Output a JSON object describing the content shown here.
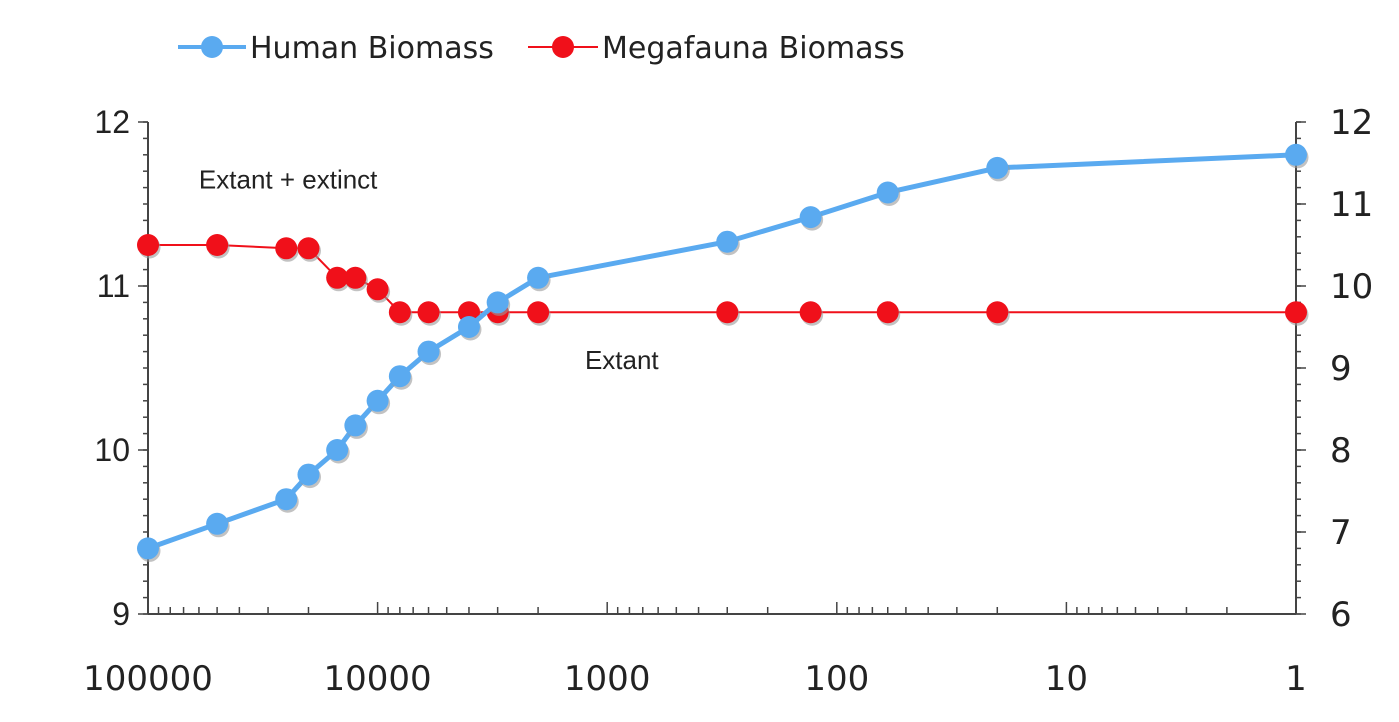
{
  "chart_data": {
    "type": "line",
    "x_scale": "log",
    "x_reversed": true,
    "xlim": [
      100000,
      1
    ],
    "ylim_left": [
      9,
      12
    ],
    "ylim_right": [
      6,
      12
    ],
    "x_tick_labels": [
      "100000",
      "10000",
      "1000",
      "100",
      "10",
      "1"
    ],
    "x_tick_values": [
      100000,
      10000,
      1000,
      100,
      10,
      1
    ],
    "y_left_tick_labels": [
      "9",
      "10",
      "11",
      "12"
    ],
    "y_left_tick_values": [
      9,
      10,
      11,
      12
    ],
    "y_right_tick_labels": [
      "6",
      "7",
      "8",
      "9",
      "10",
      "11",
      "12"
    ],
    "y_right_tick_values": [
      6,
      7,
      8,
      9,
      10,
      11,
      12
    ],
    "grid": false,
    "legend_position": "top",
    "annotations": [
      {
        "text": "Extant + extinct",
        "x": 60000,
        "y": 11.65
      },
      {
        "text": "Extant",
        "x": 1250,
        "y": 10.55
      }
    ],
    "series": [
      {
        "name": "Human Biomass",
        "color": "#5aaaf0",
        "axis": "left",
        "x": [
          100000,
          50000,
          25000,
          20000,
          15000,
          12500,
          10000,
          8000,
          6000,
          4000,
          3000,
          2000,
          300,
          130,
          60,
          20,
          1
        ],
        "y": [
          9.4,
          9.55,
          9.7,
          9.85,
          10.0,
          10.15,
          10.3,
          10.45,
          10.6,
          10.75,
          10.9,
          11.05,
          11.27,
          11.42,
          11.57,
          11.72,
          11.8
        ]
      },
      {
        "name": "Megafauna Biomass",
        "color": "#f0101a",
        "axis": "left",
        "x": [
          100000,
          50000,
          25000,
          20000,
          15000,
          12500,
          10000,
          8000,
          6000,
          4000,
          3000,
          2000,
          300,
          130,
          60,
          20,
          1
        ],
        "y": [
          11.25,
          11.25,
          11.23,
          11.23,
          11.05,
          11.05,
          10.98,
          10.84,
          10.84,
          10.84,
          10.84,
          10.84,
          10.84,
          10.84,
          10.84,
          10.84,
          10.84
        ]
      }
    ]
  }
}
